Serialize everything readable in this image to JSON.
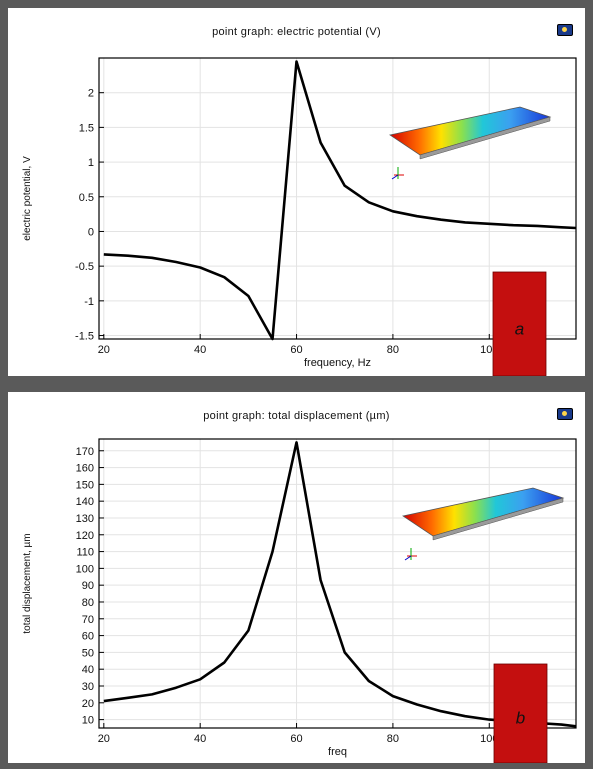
{
  "chart_data": [
    {
      "type": "line",
      "title": "point graph: electric potential (V)",
      "xlabel": "frequency, Hz",
      "ylabel": "electric potential, V",
      "xlim": [
        19,
        118
      ],
      "ylim": [
        -1.55,
        2.5
      ],
      "xticks": [
        20,
        40,
        60,
        80,
        100
      ],
      "yticks": [
        -1.5,
        -1,
        -0.5,
        0,
        0.5,
        1,
        1.5,
        2
      ],
      "ytick_labels": [
        "-1.5",
        "-1",
        "-0.5",
        "0",
        "0.5",
        "1",
        "1.5",
        "2"
      ],
      "grid": true,
      "series": [
        {
          "x": [
            20,
            25,
            30,
            35,
            40,
            45,
            50,
            55,
            60,
            65,
            70,
            75,
            80,
            85,
            90,
            95,
            100,
            105,
            110,
            115,
            118
          ],
          "values": [
            -0.33,
            -0.35,
            -0.38,
            -0.44,
            -0.52,
            -0.66,
            -0.93,
            -1.55,
            2.45,
            1.28,
            0.66,
            0.42,
            0.29,
            0.22,
            0.17,
            0.13,
            0.11,
            0.09,
            0.08,
            0.06,
            0.05
          ]
        }
      ],
      "annotation": "a"
    },
    {
      "type": "line",
      "title": "point graph: total displacement (µm)",
      "xlabel": "freq",
      "ylabel": "total displacement, µm",
      "xlim": [
        19,
        118
      ],
      "ylim": [
        5,
        177
      ],
      "xticks": [
        20,
        40,
        60,
        80,
        100
      ],
      "yticks": [
        10,
        20,
        30,
        40,
        50,
        60,
        70,
        80,
        90,
        100,
        110,
        120,
        130,
        140,
        150,
        160,
        170
      ],
      "ytick_labels": [
        "10",
        "20",
        "30",
        "40",
        "50",
        "60",
        "70",
        "80",
        "90",
        "100",
        "110",
        "120",
        "130",
        "140",
        "150",
        "160",
        "170"
      ],
      "grid": true,
      "series": [
        {
          "x": [
            20,
            25,
            30,
            35,
            40,
            45,
            50,
            55,
            60,
            65,
            70,
            75,
            80,
            85,
            90,
            95,
            100,
            105,
            110,
            115,
            118
          ],
          "values": [
            21,
            23,
            25,
            29,
            34,
            44,
            63,
            110,
            175,
            93,
            50,
            33,
            24,
            19,
            15,
            12,
            10,
            9,
            8,
            7,
            6
          ]
        }
      ],
      "annotation": "b"
    }
  ],
  "colors": {
    "line": "#000000",
    "grid": "#e3e3e3",
    "marker_box": "#c40f0f"
  }
}
